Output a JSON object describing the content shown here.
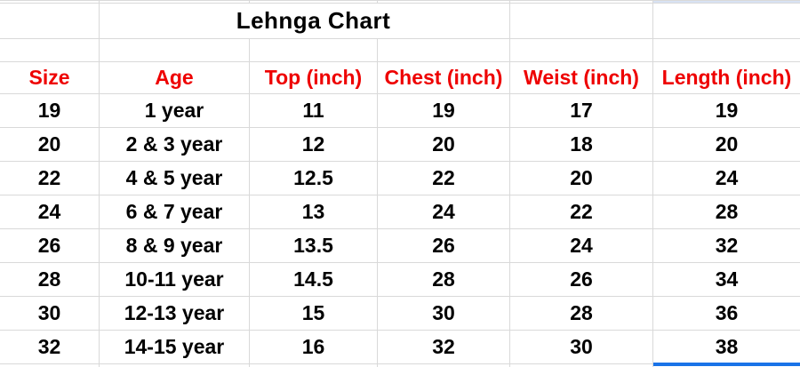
{
  "sheet": {
    "title": "Lehnga Chart",
    "columns": [
      "Size",
      "Age",
      "Top (inch)",
      "Chest (inch)",
      "Weist (inch)",
      "Length (inch)"
    ],
    "rows": [
      [
        "19",
        "1 year",
        "11",
        "19",
        "17",
        "19"
      ],
      [
        "20",
        "2 & 3 year",
        "12",
        "20",
        "18",
        "20"
      ],
      [
        "22",
        "4 & 5 year",
        "12.5",
        "22",
        "20",
        "24"
      ],
      [
        "24",
        "6 & 7 year",
        "13",
        "24",
        "22",
        "28"
      ],
      [
        "26",
        "8 & 9 year",
        "13.5",
        "26",
        "24",
        "32"
      ],
      [
        "28",
        "10-11 year",
        "14.5",
        "28",
        "26",
        "34"
      ],
      [
        "30",
        "12-13 year",
        "15",
        "30",
        "28",
        "36"
      ],
      [
        "32",
        "14-15 year",
        "16",
        "32",
        "30",
        "38"
      ]
    ],
    "colors": {
      "header_text": "#ee0000",
      "title_text": "#000000",
      "cell_text": "#000000",
      "gridline": "#d9d9d9",
      "selection_border": "#1a73e8",
      "selection_fill": "#d8e2f3",
      "background": "#ffffff"
    }
  }
}
